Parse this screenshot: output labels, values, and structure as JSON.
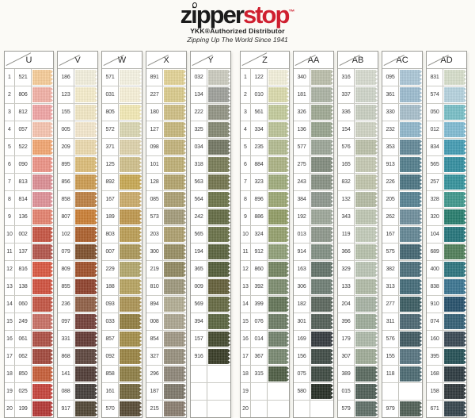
{
  "header": {
    "brand": {
      "p1": "z",
      "i": "i",
      "p2": "pper",
      "p3": "stop",
      "tm": "™"
    },
    "subtitle1": "YKK®Authorized Distributor",
    "subtitle2": "Zipping Up The World Since 1941"
  },
  "colors": {
    "brand_red": "#cf2030"
  },
  "chart": {
    "row_count": 20,
    "row_numbers": [
      1,
      2,
      3,
      4,
      5,
      6,
      7,
      8,
      9,
      10,
      11,
      12,
      13,
      14,
      15,
      16,
      17,
      18,
      19,
      20
    ],
    "columns": [
      {
        "label": "U",
        "numbered": true,
        "rows": [
          {
            "code": "521",
            "color": "#F6CB97"
          },
          {
            "code": "806",
            "color": "#F2AFA4"
          },
          {
            "code": "812",
            "color": "#F0A3A3"
          },
          {
            "code": "057",
            "color": "#F6C3AE"
          },
          {
            "code": "522",
            "color": "#F2A46E"
          },
          {
            "code": "090",
            "color": "#EC9184"
          },
          {
            "code": "813",
            "color": "#DC8C92"
          },
          {
            "code": "814",
            "color": "#DE8F96"
          },
          {
            "code": "136",
            "color": "#E4806C"
          },
          {
            "code": "002",
            "color": "#C5523F"
          },
          {
            "code": "137",
            "color": "#B25248"
          },
          {
            "code": "816",
            "color": "#D9553D"
          },
          {
            "code": "138",
            "color": "#D04E3B"
          },
          {
            "code": "060",
            "color": "#C25240"
          },
          {
            "code": "249",
            "color": "#C76D62"
          },
          {
            "code": "061",
            "color": "#AC4C41"
          },
          {
            "code": "062",
            "color": "#A04539"
          },
          {
            "code": "850",
            "color": "#C65B35"
          },
          {
            "code": "025",
            "color": "#C44038"
          },
          {
            "code": "199",
            "color": "#B23330"
          }
        ]
      },
      {
        "label": "V",
        "numbered": false,
        "rows": [
          {
            "code": "186",
            "color": "#F3EFDD"
          },
          {
            "code": "123",
            "color": "#F6EDCB"
          },
          {
            "code": "155",
            "color": "#F2E7C3"
          },
          {
            "code": "005",
            "color": "#F4E7CC"
          },
          {
            "code": "209",
            "color": "#EBD9AC"
          },
          {
            "code": "895",
            "color": "#DCBC76"
          },
          {
            "code": "856",
            "color": "#CB9A4D"
          },
          {
            "code": "858",
            "color": "#BC7E40"
          },
          {
            "code": "807",
            "color": "#C97C30"
          },
          {
            "code": "102",
            "color": "#AA5D28"
          },
          {
            "code": "079",
            "color": "#7C4C28"
          },
          {
            "code": "809",
            "color": "#9E4D26"
          },
          {
            "code": "855",
            "color": "#8C3E28"
          },
          {
            "code": "236",
            "color": "#8D5C42"
          },
          {
            "code": "097",
            "color": "#703C35"
          },
          {
            "code": "331",
            "color": "#60362F"
          },
          {
            "code": "868",
            "color": "#5A423A"
          },
          {
            "code": "141",
            "color": "#4C3832"
          },
          {
            "code": "088",
            "color": "#403A36"
          },
          {
            "code": "917",
            "color": "#4C4230"
          }
        ]
      },
      {
        "label": "W",
        "numbered": false,
        "rows": [
          {
            "code": "571",
            "color": "#F6F3E2"
          },
          {
            "code": "031",
            "color": "#F8F1D8"
          },
          {
            "code": "805",
            "color": "#F3E9B4"
          },
          {
            "code": "572",
            "color": "#DAD6B2"
          },
          {
            "code": "371",
            "color": "#DED2AA"
          },
          {
            "code": "125",
            "color": "#CFBF8A"
          },
          {
            "code": "892",
            "color": "#C7A750"
          },
          {
            "code": "167",
            "color": "#CAAA68"
          },
          {
            "code": "189",
            "color": "#BE964A"
          },
          {
            "code": "803",
            "color": "#BA9C52"
          },
          {
            "code": "007",
            "color": "#AA9656"
          },
          {
            "code": "229",
            "color": "#B2A66A"
          },
          {
            "code": "188",
            "color": "#B6A25E"
          },
          {
            "code": "093",
            "color": "#AA9252"
          },
          {
            "code": "033",
            "color": "#907C3E"
          },
          {
            "code": "857",
            "color": "#A28C46"
          },
          {
            "code": "092",
            "color": "#988240"
          },
          {
            "code": "858",
            "color": "#8C7C42"
          },
          {
            "code": "161",
            "color": "#70643A"
          },
          {
            "code": "570",
            "color": "#544730"
          }
        ]
      },
      {
        "label": "X",
        "numbered": false,
        "rows": [
          {
            "code": "891",
            "color": "#E2D294"
          },
          {
            "code": "227",
            "color": "#DACA8A"
          },
          {
            "code": "180",
            "color": "#CEBE82"
          },
          {
            "code": "127",
            "color": "#C6B67A"
          },
          {
            "code": "098",
            "color": "#C2B279"
          },
          {
            "code": "101",
            "color": "#BEAE74"
          },
          {
            "code": "128",
            "color": "#B2A26A"
          },
          {
            "code": "085",
            "color": "#AA9E70"
          },
          {
            "code": "573",
            "color": "#A29A78"
          },
          {
            "code": "203",
            "color": "#AC9E6C"
          },
          {
            "code": "300",
            "color": "#968C60"
          },
          {
            "code": "219",
            "color": "#8E865E"
          },
          {
            "code": "810",
            "color": "#9C967A"
          },
          {
            "code": "894",
            "color": "#B2AC92"
          },
          {
            "code": "008",
            "color": "#AAA48E"
          },
          {
            "code": "854",
            "color": "#9E9682"
          },
          {
            "code": "327",
            "color": "#968E7C"
          },
          {
            "code": "296",
            "color": "#8C8476"
          },
          {
            "code": "187",
            "color": "#7C7668"
          },
          {
            "code": "215",
            "color": "#877B6C"
          }
        ]
      },
      {
        "label": "Y",
        "numbered": false,
        "rows": [
          {
            "code": "032",
            "color": "#CACABE"
          },
          {
            "code": "134",
            "color": "#9C9E98"
          },
          {
            "code": "222",
            "color": "#909282"
          },
          {
            "code": "325",
            "color": "#828670"
          },
          {
            "code": "034",
            "color": "#707460"
          },
          {
            "code": "318",
            "color": "#767A54"
          },
          {
            "code": "563",
            "color": "#70724A"
          },
          {
            "code": "564",
            "color": "#6A7246"
          },
          {
            "code": "242",
            "color": "#606840"
          },
          {
            "code": "565",
            "color": "#666E44"
          },
          {
            "code": "194",
            "color": "#57603A"
          },
          {
            "code": "365",
            "color": "#505A36"
          },
          {
            "code": "009",
            "color": "#605C36"
          },
          {
            "code": "569",
            "color": "#62663E"
          },
          {
            "code": "394",
            "color": "#57623C"
          },
          {
            "code": "157",
            "color": "#40462A"
          },
          {
            "code": "916",
            "color": "#343821"
          },
          null,
          null,
          null
        ]
      },
      {
        "label": "Z",
        "numbered": true,
        "gap_before": true,
        "rows": [
          {
            "code": "122",
            "color": "#F3F0DA"
          },
          {
            "code": "010",
            "color": "#DADAAA"
          },
          {
            "code": "561",
            "color": "#C2CA9A"
          },
          {
            "code": "334",
            "color": "#BAC296"
          },
          {
            "code": "235",
            "color": "#B2BA8E"
          },
          {
            "code": "884",
            "color": "#AAB282"
          },
          {
            "code": "323",
            "color": "#9EAA7A"
          },
          {
            "code": "896",
            "color": "#9AA672"
          },
          {
            "code": "886",
            "color": "#8E9A62"
          },
          {
            "code": "324",
            "color": "#929E6A"
          },
          {
            "code": "912",
            "color": "#8E9E76"
          },
          {
            "code": "860",
            "color": "#72825E"
          },
          {
            "code": "392",
            "color": "#7A8A6C"
          },
          {
            "code": "399",
            "color": "#607254"
          },
          {
            "code": "076",
            "color": "#6A7A62"
          },
          {
            "code": "014",
            "color": "#70806A"
          },
          {
            "code": "367",
            "color": "#76866E"
          },
          {
            "code": "315",
            "color": "#4A5A40"
          },
          null,
          null
        ]
      },
      {
        "label": "AA",
        "numbered": false,
        "rows": [
          {
            "code": "340",
            "color": "#BABEAA"
          },
          {
            "code": "181",
            "color": "#AAB2A2"
          },
          {
            "code": "326",
            "color": "#9EA892"
          },
          {
            "code": "136",
            "color": "#96A28C"
          },
          {
            "code": "577",
            "color": "#9AA496"
          },
          {
            "code": "275",
            "color": "#808A7C"
          },
          {
            "code": "243",
            "color": "#869082"
          },
          {
            "code": "384",
            "color": "#8C968C"
          },
          {
            "code": "192",
            "color": "#9CA698"
          },
          {
            "code": "013",
            "color": "#8C968A"
          },
          {
            "code": "914",
            "color": "#808E82"
          },
          {
            "code": "163",
            "color": "#607066"
          },
          {
            "code": "306",
            "color": "#6C7C72"
          },
          {
            "code": "182",
            "color": "#58645A"
          },
          {
            "code": "301",
            "color": "#505C54"
          },
          {
            "code": "169",
            "color": "#30363A"
          },
          {
            "code": "156",
            "color": "#3C4842"
          },
          {
            "code": "075",
            "color": "#3A463E"
          },
          {
            "code": "580",
            "color": "#222A21"
          },
          null
        ]
      },
      {
        "label": "AB",
        "numbered": false,
        "rows": [
          {
            "code": "316",
            "color": "#D6DACE"
          },
          {
            "code": "337",
            "color": "#CED4C8"
          },
          {
            "code": "336",
            "color": "#C8CEC0"
          },
          {
            "code": "154",
            "color": "#CED2C2"
          },
          {
            "code": "576",
            "color": "#BAC0A8"
          },
          {
            "code": "165",
            "color": "#C4C8B2"
          },
          {
            "code": "832",
            "color": "#C0C4AA"
          },
          {
            "code": "132",
            "color": "#B4BAA2"
          },
          {
            "code": "343",
            "color": "#BEC6B2"
          },
          {
            "code": "119",
            "color": "#C2CAB8"
          },
          {
            "code": "366",
            "color": "#B6C0AA"
          },
          {
            "code": "329",
            "color": "#BAC4B4"
          },
          {
            "code": "133",
            "color": "#B0BAA6"
          },
          {
            "code": "204",
            "color": "#A6B2A2"
          },
          {
            "code": "396",
            "color": "#9CAA98"
          },
          {
            "code": "179",
            "color": "#ACB8A8"
          },
          {
            "code": "307",
            "color": "#9EAA96"
          },
          {
            "code": "389",
            "color": "#57675C"
          },
          {
            "code": "015",
            "color": "#4C5C54"
          },
          {
            "code": "579",
            "color": "#5C6C64"
          }
        ]
      },
      {
        "label": "AC",
        "numbered": false,
        "rows": [
          {
            "code": "095",
            "color": "#AAC6D6"
          },
          {
            "code": "361",
            "color": "#9ABACE"
          },
          {
            "code": "330",
            "color": "#A6BECA"
          },
          {
            "code": "232",
            "color": "#8EB6CA"
          },
          {
            "code": "353",
            "color": "#608696"
          },
          {
            "code": "913",
            "color": "#507C8A"
          },
          {
            "code": "226",
            "color": "#487280"
          },
          {
            "code": "205",
            "color": "#548090"
          },
          {
            "code": "262",
            "color": "#6C8C9A"
          },
          {
            "code": "167",
            "color": "#608492"
          },
          {
            "code": "575",
            "color": "#40636F"
          },
          {
            "code": "382",
            "color": "#486C78"
          },
          {
            "code": "313",
            "color": "#406876"
          },
          {
            "code": "277",
            "color": "#37595F"
          },
          {
            "code": "311",
            "color": "#48646F"
          },
          {
            "code": "576",
            "color": "#3C565E"
          },
          {
            "code": "155",
            "color": "#54727E"
          },
          {
            "code": "118",
            "color": "#48676F"
          },
          null,
          {
            "code": "979",
            "color": "#4C5C52"
          }
        ]
      },
      {
        "label": "AD",
        "numbered": false,
        "rows": [
          {
            "code": "831",
            "color": "#D6DECA"
          },
          {
            "code": "574",
            "color": "#B4D2DE"
          },
          {
            "code": "050",
            "color": "#76BEC6"
          },
          {
            "code": "012",
            "color": "#7EBAD2"
          },
          {
            "code": "834",
            "color": "#409AB2"
          },
          {
            "code": "565",
            "color": "#2F8C9E"
          },
          {
            "code": "257",
            "color": "#31909A"
          },
          {
            "code": "328",
            "color": "#3C968A"
          },
          {
            "code": "320",
            "color": "#227A6A"
          },
          {
            "code": "104",
            "color": "#207278"
          },
          {
            "code": "689",
            "color": "#4C7C56"
          },
          {
            "code": "400",
            "color": "#29727C"
          },
          {
            "code": "838",
            "color": "#37728E"
          },
          {
            "code": "910",
            "color": "#214C68"
          },
          {
            "code": "074",
            "color": "#305C72"
          },
          {
            "code": "160",
            "color": "#344450"
          },
          {
            "code": "395",
            "color": "#204C52"
          },
          {
            "code": "168",
            "color": "#28363C"
          },
          {
            "code": "158",
            "color": "#2C3438"
          },
          {
            "code": "671",
            "color": "#304048"
          }
        ]
      }
    ]
  }
}
